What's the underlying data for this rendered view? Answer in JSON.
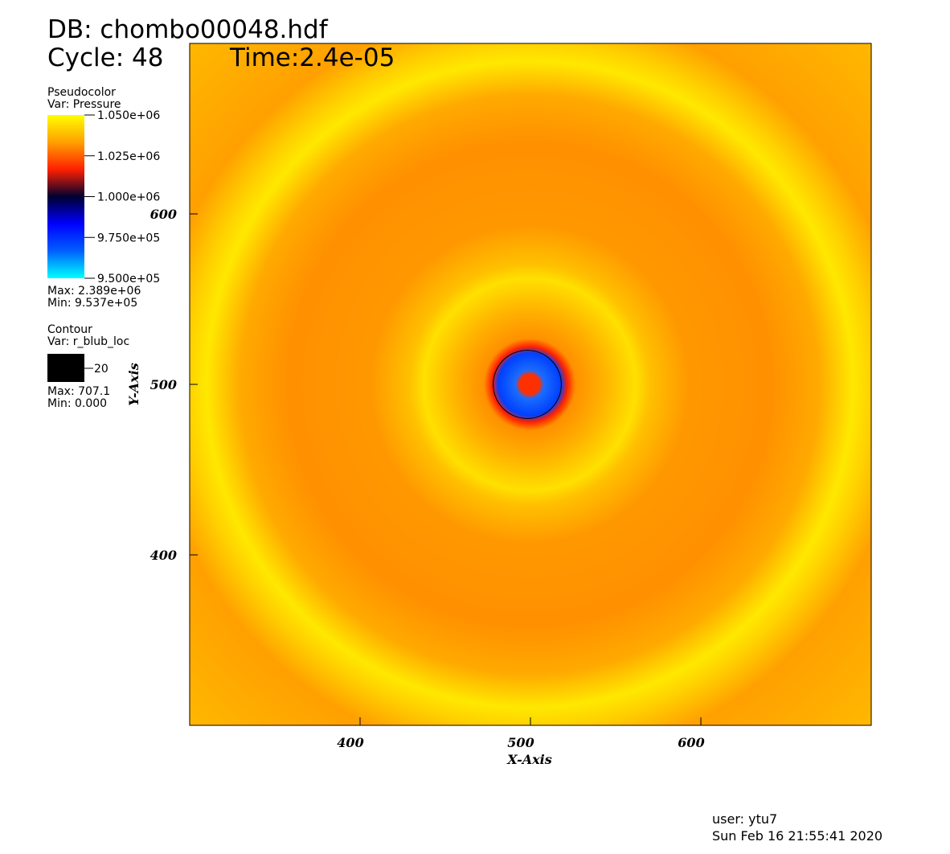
{
  "chart_data": {
    "type": "pseudocolor",
    "title": "DB: chombo00048.hdf",
    "cycle": "Cycle: 48",
    "time": "Time:2.4e-05",
    "x_label": "X-Axis",
    "y_label": "Y-Axis",
    "xlim": [
      300,
      700
    ],
    "ylim": [
      300,
      700
    ],
    "xticks": [
      400,
      500,
      600
    ],
    "yticks": [
      400,
      500,
      600
    ],
    "pseudocolor": {
      "plot": "Pseudocolor",
      "var": "Var: Pressure",
      "colormap": [
        "#00ffff",
        "#0060ff",
        "#0000ff",
        "#000030",
        "#ff2000",
        "#ffa000",
        "#ffff00"
      ],
      "lim": [
        950000,
        1050000
      ],
      "ticks": [
        {
          "value": 1050000,
          "label": "1.050e+06"
        },
        {
          "value": 1025000,
          "label": "1.025e+06"
        },
        {
          "value": 1000000,
          "label": "1.000e+06"
        },
        {
          "value": 975000,
          "label": "9.750e+05"
        },
        {
          "value": 950000,
          "label": "9.500e+05"
        }
      ],
      "max_label": "Max: 2.389e+06",
      "min_label": "Min: 9.537e+05"
    },
    "contour": {
      "plot": "Contour",
      "var": "Var: r_blub_loc",
      "levels": [
        20
      ],
      "color": "#000000",
      "max_label": "Max: 707.1",
      "min_label": "Min: 0.000"
    },
    "user": "user: ytu7",
    "date": "Sun Feb 16 21:55:41 2020"
  }
}
